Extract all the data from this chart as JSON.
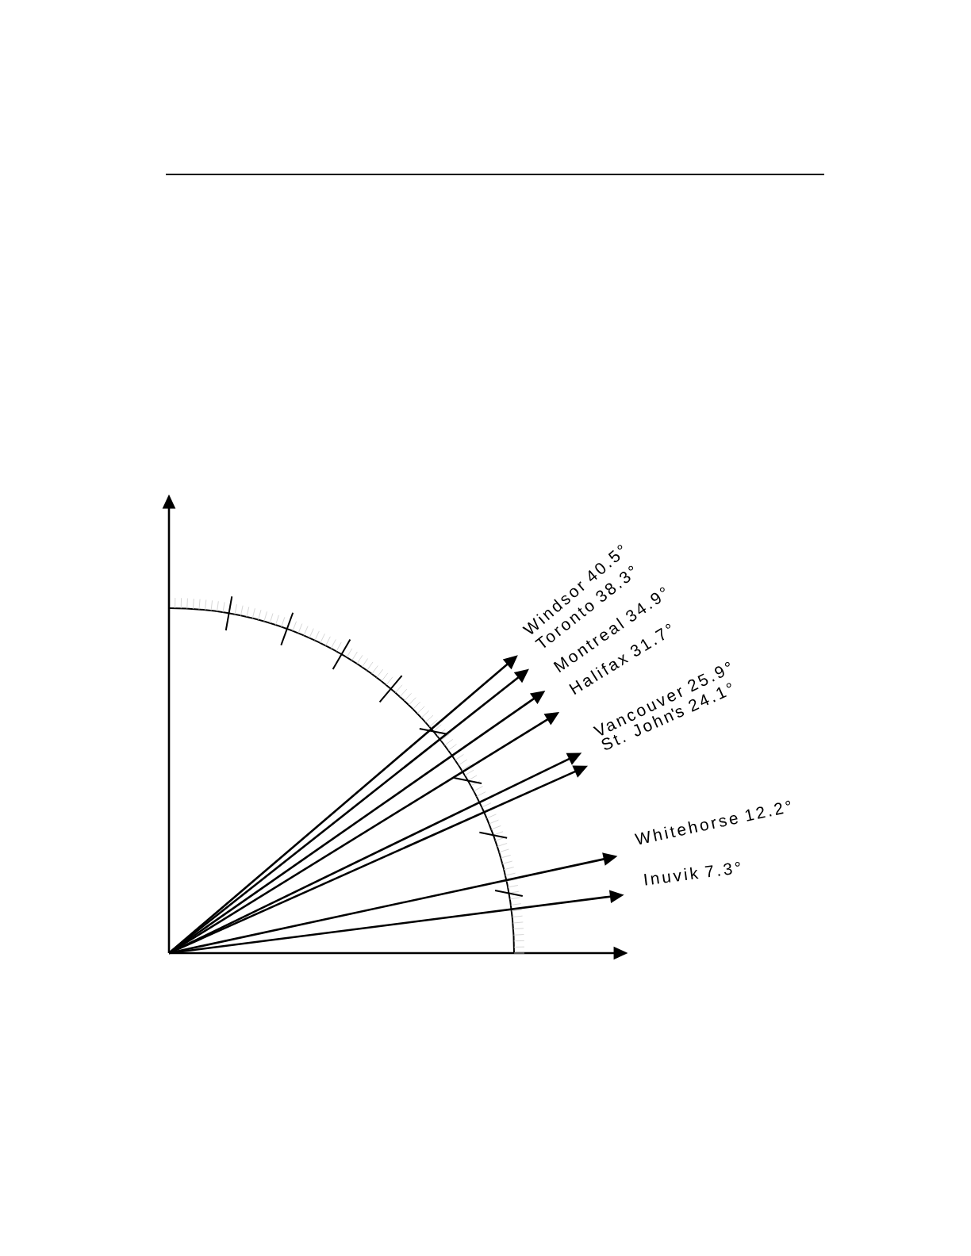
{
  "chart_data": {
    "type": "other",
    "categories": [
      "Windsor",
      "Toronto",
      "Montreal",
      "Halifax",
      "Vancouver",
      "St. John's",
      "Whitehorse",
      "Inuvik"
    ],
    "values": [
      40.5,
      38.3,
      34.9,
      31.7,
      25.9,
      24.1,
      12.2,
      7.3
    ],
    "value_labels": [
      "40.5°",
      "38.3°",
      "34.9°",
      "31.7°",
      "25.9°",
      "24.1°",
      "12.2°",
      "7.3°"
    ]
  }
}
